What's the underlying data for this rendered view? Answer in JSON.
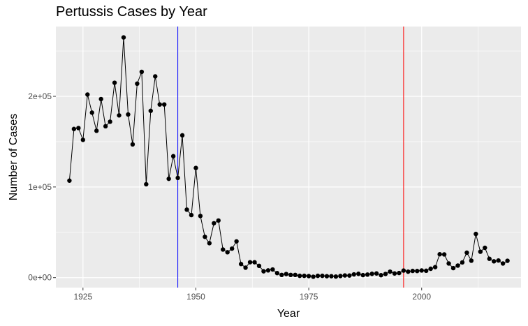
{
  "chart_data": {
    "type": "line",
    "title": "Pertussis Cases by Year",
    "xlabel": "Year",
    "ylabel": "Number of Cases",
    "xlim": [
      1919,
      2022
    ],
    "ylim": [
      -11000,
      277000
    ],
    "x_ticks": [
      1925,
      1950,
      1975,
      2000
    ],
    "x_tick_labels": [
      "1925",
      "1950",
      "1975",
      "2000"
    ],
    "y_ticks": [
      0,
      100000,
      200000
    ],
    "y_tick_labels": [
      "0e+00",
      "1e+05",
      "2e+05"
    ],
    "grid": true,
    "background": "#ebebeb",
    "grid_color": "#ffffff",
    "series_color": "#000000",
    "vlines": [
      {
        "x": 1946,
        "color": "#0000ff"
      },
      {
        "x": 1996,
        "color": "#ff0000"
      }
    ],
    "x": [
      1922,
      1923,
      1924,
      1925,
      1926,
      1927,
      1928,
      1929,
      1930,
      1931,
      1932,
      1933,
      1934,
      1935,
      1936,
      1937,
      1938,
      1939,
      1940,
      1941,
      1942,
      1943,
      1944,
      1945,
      1946,
      1947,
      1948,
      1949,
      1950,
      1951,
      1952,
      1953,
      1954,
      1955,
      1956,
      1957,
      1958,
      1959,
      1960,
      1961,
      1962,
      1963,
      1964,
      1965,
      1966,
      1967,
      1968,
      1969,
      1970,
      1971,
      1972,
      1973,
      1974,
      1975,
      1976,
      1977,
      1978,
      1979,
      1980,
      1981,
      1982,
      1983,
      1984,
      1985,
      1986,
      1987,
      1988,
      1989,
      1990,
      1991,
      1992,
      1993,
      1994,
      1995,
      1996,
      1997,
      1998,
      1999,
      2000,
      2001,
      2002,
      2003,
      2004,
      2005,
      2006,
      2007,
      2008,
      2009,
      2010,
      2011,
      2012,
      2013,
      2014,
      2015,
      2016,
      2017,
      2018,
      2019
    ],
    "y": [
      107000,
      164000,
      165000,
      152000,
      202000,
      182000,
      162000,
      197000,
      167000,
      172000,
      215000,
      179000,
      265000,
      180000,
      147000,
      214000,
      227000,
      103000,
      184000,
      222000,
      191000,
      191000,
      109000,
      134000,
      110000,
      157000,
      75000,
      69000,
      121000,
      68000,
      45000,
      38000,
      60000,
      63000,
      31000,
      28000,
      32000,
      40000,
      15000,
      11000,
      17000,
      17000,
      13000,
      7000,
      8000,
      9000,
      5000,
      3000,
      4000,
      3000,
      3000,
      2000,
      2000,
      1700,
      1000,
      2000,
      2000,
      1600,
      1600,
      1200,
      1800,
      2400,
      2300,
      3600,
      4200,
      2800,
      3400,
      4200,
      4600,
      2700,
      4100,
      6600,
      4600,
      5100,
      7800,
      6600,
      7400,
      7300,
      7900,
      7600,
      9800,
      11600,
      25800,
      25600,
      15600,
      10500,
      13300,
      16800,
      27500,
      18700,
      48200,
      28600,
      32900,
      20800,
      18000,
      18900,
      15600,
      18600
    ]
  }
}
